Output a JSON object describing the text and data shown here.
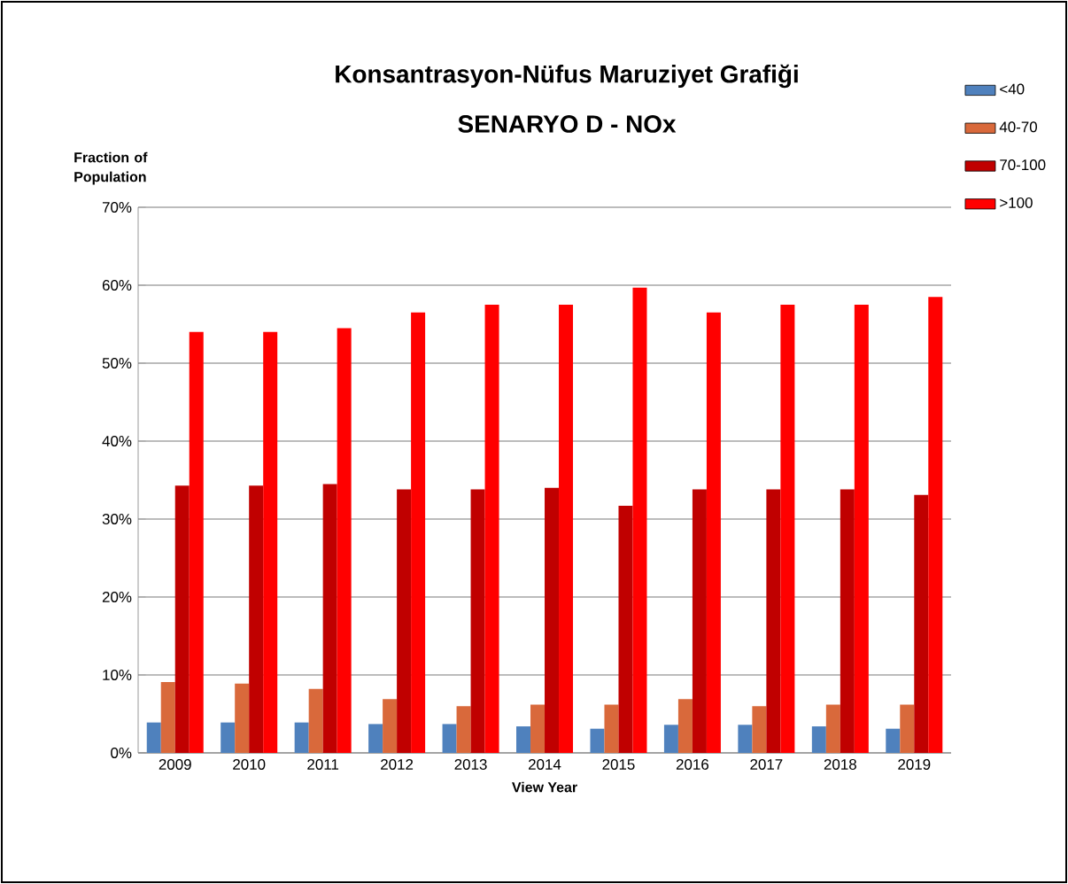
{
  "chart_data": {
    "type": "bar",
    "title": "Konsantrasyon-Nüfus Maruziyet Grafiği",
    "subtitle": "SENARYO D - NOx",
    "xlabel": "View Year",
    "ylabel": "Fraction of Population",
    "categories": [
      "2009",
      "2010",
      "2011",
      "2012",
      "2013",
      "2014",
      "2015",
      "2016",
      "2017",
      "2018",
      "2019"
    ],
    "series": [
      {
        "name": "<40",
        "color": "#4f81bd",
        "values": [
          3.9,
          3.9,
          3.9,
          3.7,
          3.7,
          3.4,
          3.1,
          3.6,
          3.6,
          3.4,
          3.1
        ]
      },
      {
        "name": "40-70",
        "color": "#d9693b",
        "values": [
          9.1,
          8.9,
          8.2,
          6.9,
          6.0,
          6.2,
          6.2,
          6.9,
          6.0,
          6.2,
          6.2
        ]
      },
      {
        "name": "70-100",
        "color": "#c00000",
        "values": [
          34.3,
          34.3,
          34.5,
          33.8,
          33.8,
          34.0,
          31.7,
          33.8,
          33.8,
          33.8,
          33.1
        ]
      },
      {
        "name": ">100",
        "color": "#ff0000",
        "values": [
          54.0,
          54.0,
          54.5,
          56.5,
          57.5,
          57.5,
          59.7,
          56.5,
          57.5,
          57.5,
          58.5
        ]
      }
    ],
    "ylim": [
      0,
      70
    ],
    "yticks": [
      {
        "value": 0,
        "label": "0%"
      },
      {
        "value": 10,
        "label": "10%"
      },
      {
        "value": 20,
        "label": "20%"
      },
      {
        "value": 30,
        "label": "30%"
      },
      {
        "value": 40,
        "label": "40%"
      },
      {
        "value": 50,
        "label": "50%"
      },
      {
        "value": 60,
        "label": "60%"
      },
      {
        "value": 70,
        "label": "70%"
      }
    ],
    "grid": "y",
    "legend": "top right"
  }
}
